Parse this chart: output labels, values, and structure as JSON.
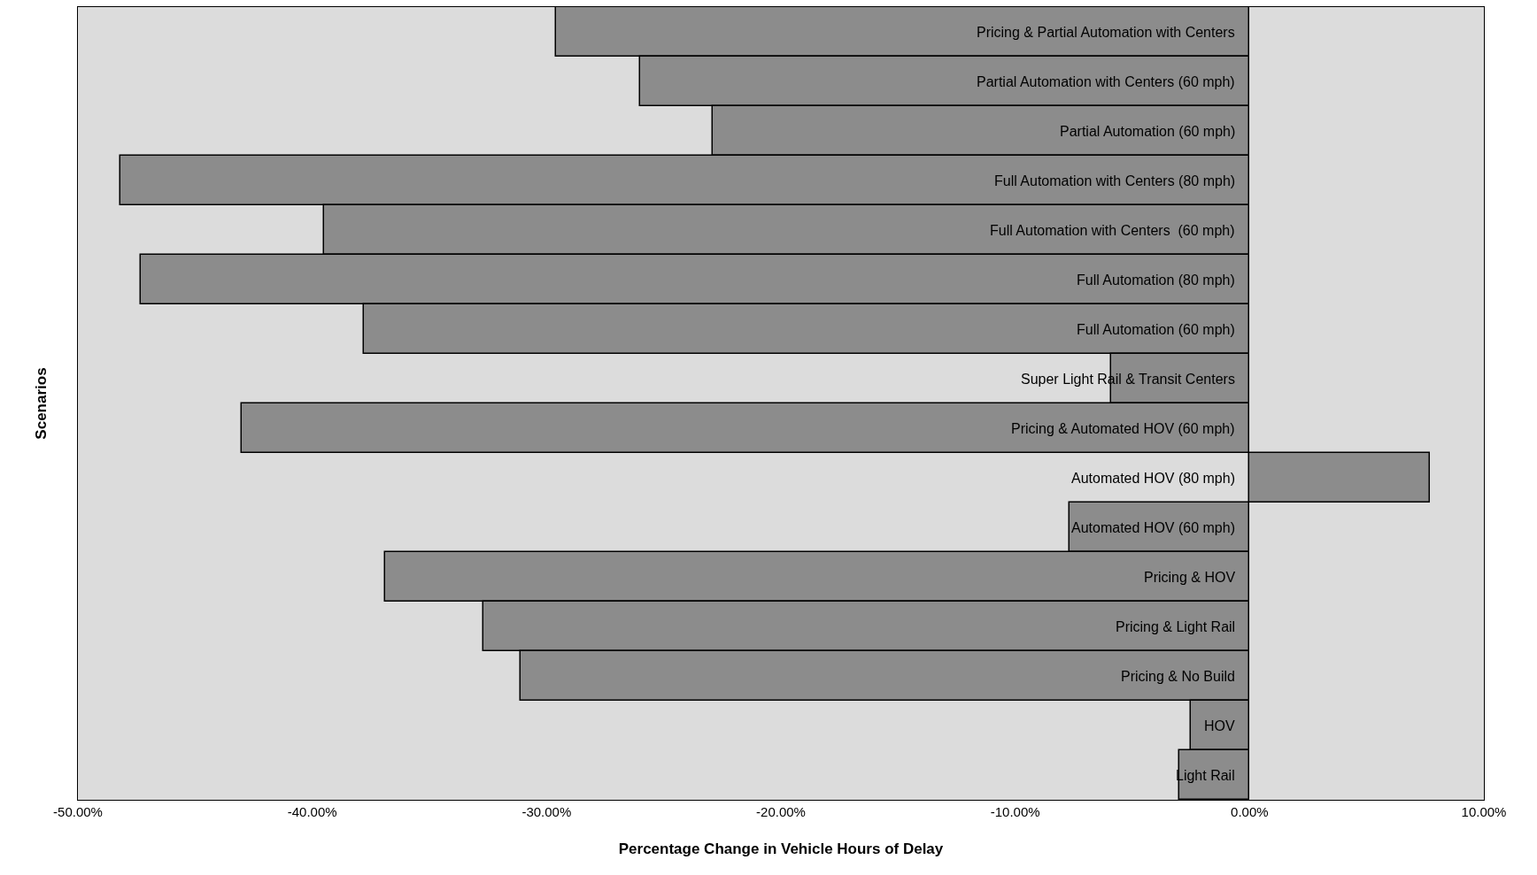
{
  "chart_data": {
    "type": "bar",
    "orientation": "horizontal",
    "xlabel": "Percentage Change in Vehicle Hours of Delay",
    "ylabel": "Scenarios",
    "categories": [
      "Pricing & Partial Automation with Centers",
      "Partial Automation with Centers (60 mph)",
      "Partial Automation (60 mph)",
      "Full Automation with Centers (80 mph)",
      "Full Automation with Centers  (60 mph)",
      "Full Automation (80 mph)",
      "Full Automation (60 mph)",
      "Super Light Rail & Transit Centers",
      "Pricing & Automated HOV (60 mph)",
      "Automated HOV (80 mph)",
      "Automated HOV (60 mph)",
      "Pricing & HOV",
      "Pricing & Light Rail",
      "Pricing & No Build",
      "HOV",
      "Light Rail"
    ],
    "values": [
      -29.6,
      -26.0,
      -22.9,
      -48.2,
      -39.5,
      -47.3,
      -37.8,
      -5.9,
      -43.0,
      7.7,
      -7.7,
      -36.9,
      -32.7,
      -31.1,
      -2.5,
      -3.0
    ],
    "color": "#8c8c8c",
    "xlim": [
      -50,
      10
    ],
    "xticks": [
      {
        "value": -50,
        "label": "-50.00%"
      },
      {
        "value": -40,
        "label": "-40.00%"
      },
      {
        "value": -30,
        "label": "-30.00%"
      },
      {
        "value": -20,
        "label": "-20.00%"
      },
      {
        "value": -10,
        "label": "-10.00%"
      },
      {
        "value": 0,
        "label": "0.00%"
      },
      {
        "value": 10,
        "label": "10.00%"
      }
    ],
    "grid": false,
    "legend": false
  }
}
